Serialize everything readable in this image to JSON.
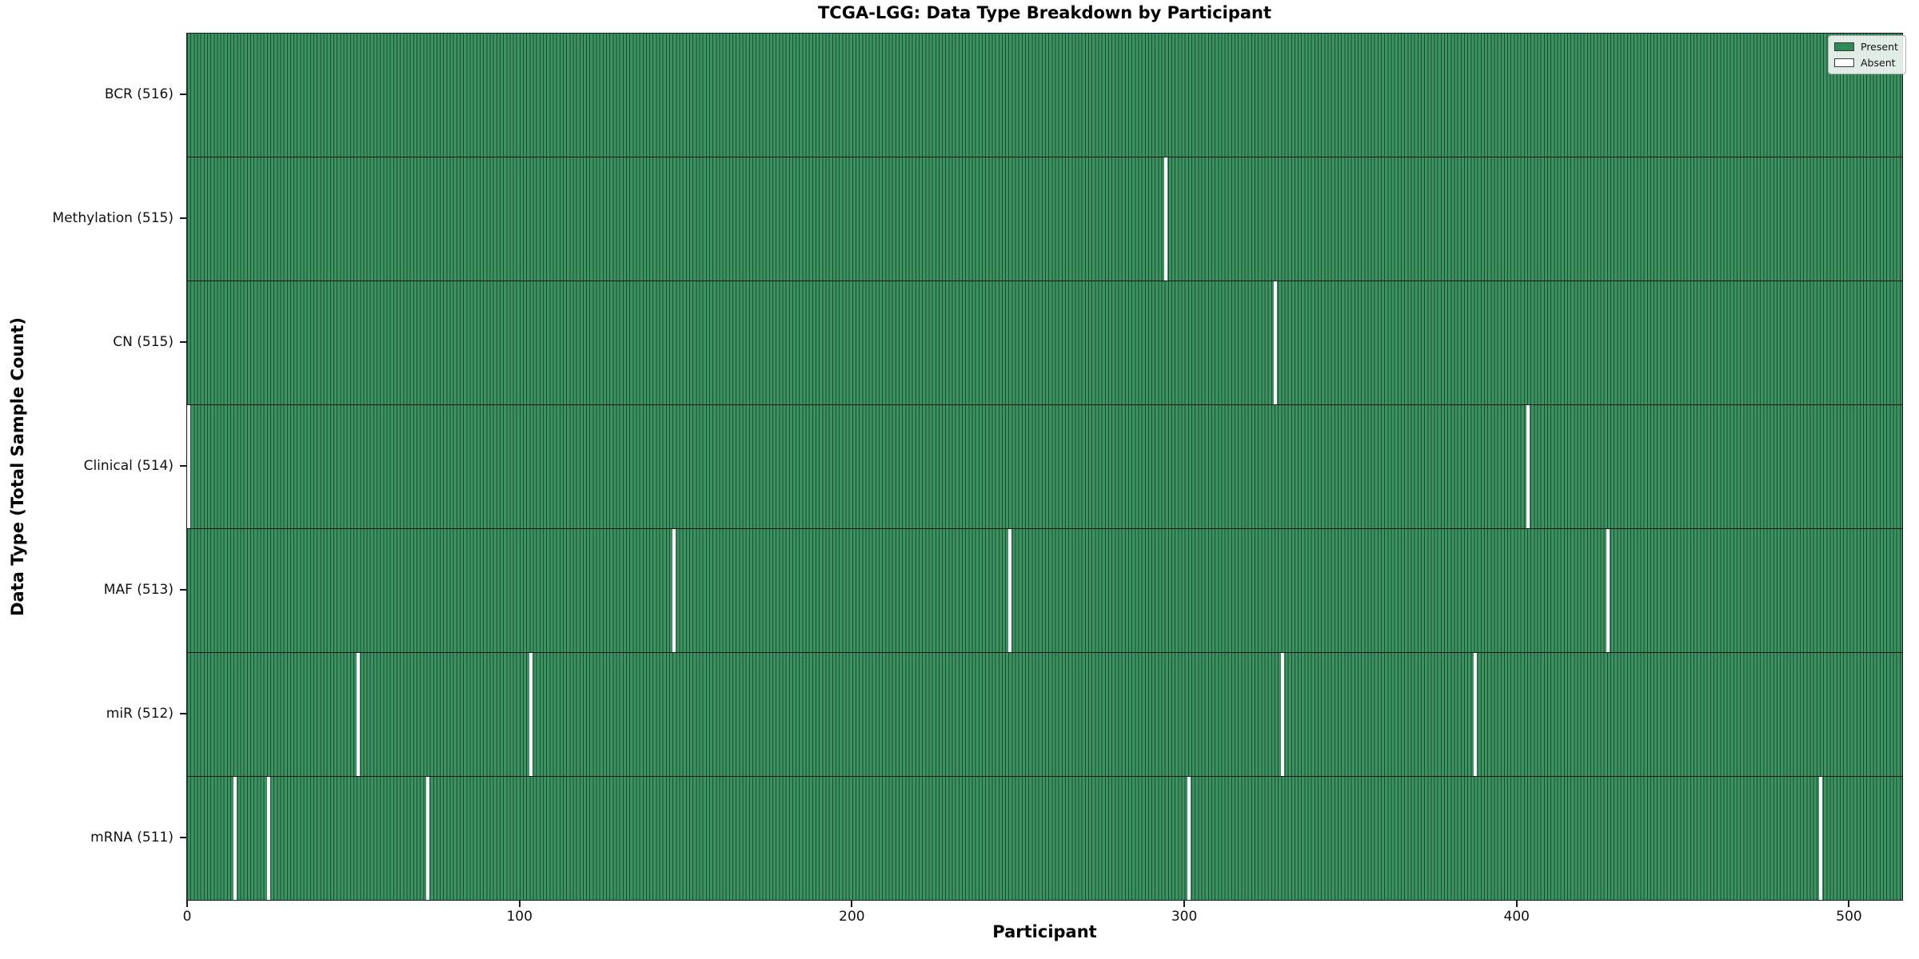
{
  "chart_data": {
    "type": "heatmap",
    "title": "TCGA-LGG: Data Type Breakdown by Participant",
    "xlabel": "Participant",
    "ylabel": "Data Type (Total Sample Count)",
    "total_participants": 516,
    "x_range": [
      0,
      516
    ],
    "x_ticks": [
      0,
      100,
      200,
      300,
      400,
      500
    ],
    "grid": false,
    "legend": {
      "position": "upper-right",
      "entries": [
        {
          "label": "Present",
          "color": "#2e8b57"
        },
        {
          "label": "Absent",
          "color": "#ffffff"
        }
      ]
    },
    "rows": [
      {
        "label": "BCR (516)",
        "data_type": "BCR",
        "present_count": 516,
        "absent_participants": []
      },
      {
        "label": "Methylation (515)",
        "data_type": "Methylation",
        "present_count": 515,
        "absent_participants": [
          294
        ]
      },
      {
        "label": "CN (515)",
        "data_type": "CN",
        "present_count": 515,
        "absent_participants": [
          327
        ]
      },
      {
        "label": "Clinical (514)",
        "data_type": "Clinical",
        "present_count": 514,
        "absent_participants": [
          0,
          403
        ]
      },
      {
        "label": "MAF (513)",
        "data_type": "MAF",
        "present_count": 513,
        "absent_participants": [
          146,
          247,
          427
        ]
      },
      {
        "label": "miR (512)",
        "data_type": "miR",
        "present_count": 512,
        "absent_participants": [
          51,
          103,
          329,
          387
        ]
      },
      {
        "label": "mRNA (511)",
        "data_type": "mRNA",
        "present_count": 511,
        "absent_participants": [
          14,
          24,
          72,
          301,
          491
        ]
      }
    ],
    "colors": {
      "present": "#2e8b57",
      "present_fill": "#3d9262",
      "stripe_edge": "#1b4d33",
      "absent": "#ffffff",
      "frame": "#1a1a1a"
    }
  }
}
